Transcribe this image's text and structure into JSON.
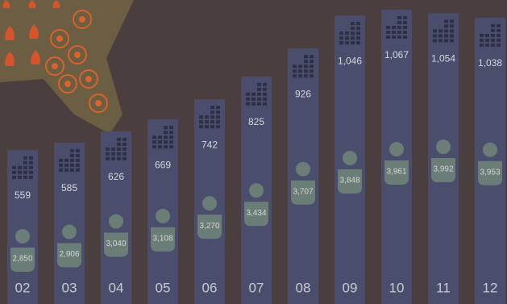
{
  "chart_data": {
    "type": "bar",
    "categories": [
      "02",
      "03",
      "04",
      "05",
      "06",
      "07",
      "08",
      "09",
      "10",
      "11",
      "12"
    ],
    "series": [
      {
        "name": null,
        "color": "#4a4e6c",
        "values": [
          559,
          585,
          626,
          669,
          742,
          825,
          926,
          1046,
          1067,
          1054,
          1038
        ],
        "value_labels": [
          "559",
          "585",
          "626",
          "669",
          "742",
          "825",
          "926",
          "1,046",
          "1,067",
          "1,054",
          "1,038"
        ]
      },
      {
        "name": null,
        "color": "#6a7d77",
        "values": [
          2850,
          2906,
          3040,
          3108,
          3270,
          3434,
          3707,
          3848,
          3961,
          3992,
          3953
        ],
        "value_labels": [
          "2,850",
          "2,906",
          "3,040",
          "3,108",
          "3,270",
          "3,434",
          "3,707",
          "3,848",
          "3,961",
          "3,992",
          "3,953"
        ]
      }
    ]
  }
}
